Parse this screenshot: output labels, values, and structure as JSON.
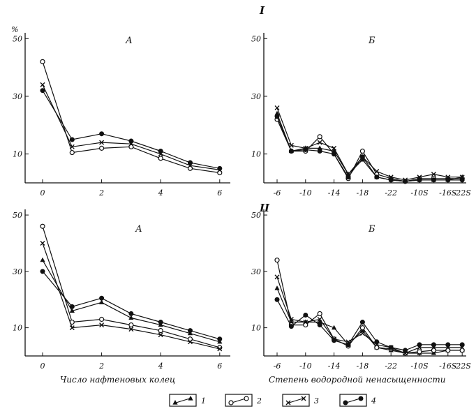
{
  "figure": {
    "row_labels": [
      "I",
      "II"
    ],
    "y_unit": "%",
    "legend": [
      "1",
      "2",
      "3",
      "4"
    ]
  },
  "chart_data": [
    {
      "type": "line",
      "panel": "I-A",
      "title": "А",
      "xlabel": "",
      "ylabel": "%",
      "x": [
        0,
        1,
        2,
        3,
        4,
        5,
        6
      ],
      "x_ticks": [
        0,
        2,
        4,
        6
      ],
      "y_ticks": [
        10,
        30,
        50
      ],
      "xlim": [
        -0.5,
        6.5
      ],
      "ylim": [
        0,
        52
      ],
      "series": [
        {
          "name": "2",
          "marker": "circle-open",
          "values": [
            42,
            10.5,
            12,
            12.5,
            8.5,
            5,
            3.5
          ]
        },
        {
          "name": "3",
          "marker": "cross",
          "values": [
            34,
            12.5,
            14,
            13.5,
            10,
            6,
            4.5
          ]
        },
        {
          "name": "4",
          "marker": "circle-filled",
          "values": [
            32,
            15,
            17,
            14.5,
            11,
            7,
            5
          ]
        }
      ]
    },
    {
      "type": "line",
      "panel": "I-Б",
      "title": "Б",
      "xlabel": "",
      "ylabel": "",
      "x": [
        -6,
        -8,
        -10,
        -12,
        -14,
        -16,
        -18,
        -20,
        -22,
        -24,
        -26,
        -28,
        -30,
        -32
      ],
      "x_ticks": [
        "-6",
        "-10",
        "-14",
        "-18",
        "-22",
        "-10S",
        "-16S",
        "-22S"
      ],
      "y_ticks": [
        10,
        30,
        50
      ],
      "ylim": [
        0,
        52
      ],
      "series": [
        {
          "name": "1",
          "marker": "triangle-filled",
          "values": [
            24,
            11,
            12,
            12,
            11,
            3,
            8,
            2,
            1,
            0.5,
            1,
            1,
            1,
            2
          ]
        },
        {
          "name": "2",
          "marker": "circle-open",
          "values": [
            22,
            11,
            11,
            16,
            10,
            1.5,
            11,
            3,
            1.5,
            0.5,
            1.5,
            1.5,
            1.5,
            1.5
          ]
        },
        {
          "name": "3",
          "marker": "cross",
          "values": [
            26,
            13,
            12,
            14,
            12,
            3,
            9,
            4,
            2,
            1,
            2,
            3,
            2,
            2
          ]
        },
        {
          "name": "4",
          "marker": "circle-filled",
          "values": [
            23,
            11,
            11.5,
            11,
            10,
            2,
            9,
            2,
            1,
            0.5,
            1,
            1,
            1,
            1
          ]
        }
      ]
    },
    {
      "type": "line",
      "panel": "II-A",
      "title": "А",
      "xlabel": "Число нафтеновых колец",
      "ylabel": "%",
      "x": [
        0,
        1,
        2,
        3,
        4,
        5,
        6
      ],
      "x_ticks": [
        0,
        2,
        4,
        6
      ],
      "y_ticks": [
        10,
        30,
        50
      ],
      "xlim": [
        -0.5,
        6.5
      ],
      "ylim": [
        0,
        52
      ],
      "series": [
        {
          "name": "1",
          "marker": "triangle-filled",
          "values": [
            34,
            16,
            19,
            13.5,
            11,
            8,
            5
          ]
        },
        {
          "name": "2",
          "marker": "circle-open",
          "values": [
            46,
            12,
            13,
            11,
            9,
            6,
            3
          ]
        },
        {
          "name": "3",
          "marker": "cross",
          "values": [
            40,
            10,
            11,
            9.5,
            7.5,
            5,
            2.5
          ]
        },
        {
          "name": "4",
          "marker": "circle-filled",
          "values": [
            30,
            17.5,
            20.5,
            15,
            12,
            9,
            6
          ]
        }
      ]
    },
    {
      "type": "line",
      "panel": "II-Б",
      "title": "Б",
      "xlabel": "Степень водородной ненасыщенности",
      "ylabel": "",
      "x": [
        -6,
        -8,
        -10,
        -12,
        -14,
        -16,
        -18,
        -20,
        -22,
        -24,
        -26,
        -28,
        -30,
        -32
      ],
      "x_ticks": [
        "-6",
        "-10",
        "-14",
        "-18",
        "-22",
        "-10S",
        "-16S",
        "-22S"
      ],
      "y_ticks": [
        10,
        30,
        50
      ],
      "ylim": [
        0,
        52
      ],
      "series": [
        {
          "name": "1",
          "marker": "triangle-filled",
          "values": [
            24,
            12,
            12,
            12,
            10,
            4,
            9,
            3,
            2,
            1,
            1,
            1,
            2,
            2
          ]
        },
        {
          "name": "2",
          "marker": "circle-open",
          "values": [
            34,
            11,
            11,
            15,
            6,
            3.5,
            10,
            3,
            2.5,
            1,
            1.5,
            2,
            2,
            2
          ]
        },
        {
          "name": "3",
          "marker": "cross",
          "values": [
            28,
            13,
            12,
            13,
            6,
            5,
            8,
            4,
            3,
            1,
            3,
            3,
            3,
            3
          ]
        },
        {
          "name": "4",
          "marker": "circle-filled",
          "values": [
            20,
            10.5,
            14.5,
            11,
            5.5,
            4,
            12,
            5,
            3,
            2,
            4,
            4,
            4,
            4
          ]
        }
      ]
    }
  ]
}
